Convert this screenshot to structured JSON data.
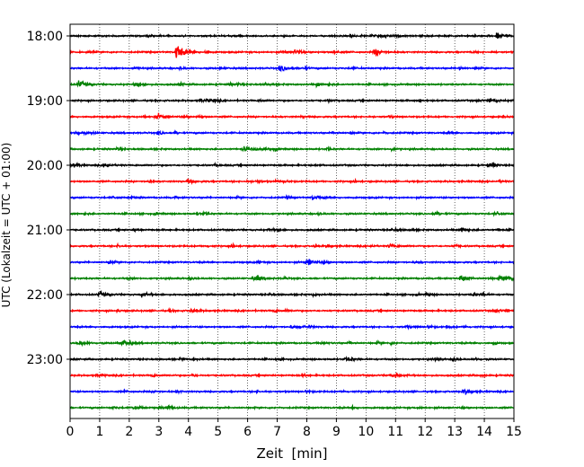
{
  "chart_data": {
    "type": "line",
    "title": "",
    "xlabel": "Zeit  [min]",
    "ylabel": "UTC (Lokalzeit = UTC + 01:00)",
    "xlim": [
      0,
      15
    ],
    "x_ticks": [
      "0",
      "1",
      "2",
      "3",
      "4",
      "5",
      "6",
      "7",
      "8",
      "9",
      "10",
      "11",
      "12",
      "13",
      "14",
      "15"
    ],
    "y_ticks": [
      "18:00",
      "19:00",
      "20:00",
      "21:00",
      "22:00",
      "23:00"
    ],
    "grid": "vertical dotted at each minute",
    "trace_interval_minutes": 15,
    "start_time": "18:00",
    "trace_count": 24,
    "trace_colors": [
      "#000000",
      "#ff0000",
      "#0000ff",
      "#008000"
    ],
    "events": [
      {
        "trace": 0,
        "t": 14.45,
        "amp": 0.7
      },
      {
        "trace": 1,
        "t": 3.6,
        "amp": 1.6
      },
      {
        "trace": 1,
        "t": 10.3,
        "amp": 0.7
      },
      {
        "trace": 1,
        "t": 7.6,
        "amp": 0.45
      },
      {
        "trace": 2,
        "t": 7.1,
        "amp": 0.55
      },
      {
        "trace": 3,
        "t": 0.3,
        "amp": 0.65
      },
      {
        "trace": 3,
        "t": 2.2,
        "amp": 0.4
      },
      {
        "trace": 4,
        "t": 14.2,
        "amp": 0.35
      },
      {
        "trace": 5,
        "t": 3.0,
        "amp": 0.3
      },
      {
        "trace": 6,
        "t": 0.2,
        "amp": 0.3
      },
      {
        "trace": 7,
        "t": 5.9,
        "amp": 0.35
      },
      {
        "trace": 8,
        "t": 1.2,
        "amp": 0.3
      },
      {
        "trace": 9,
        "t": 4.0,
        "amp": 0.3
      },
      {
        "trace": 10,
        "t": 8.2,
        "amp": 0.3
      },
      {
        "trace": 11,
        "t": 12.3,
        "amp": 0.3
      },
      {
        "trace": 12,
        "t": 13.2,
        "amp": 0.45
      },
      {
        "trace": 13,
        "t": 10.8,
        "amp": 0.3
      },
      {
        "trace": 14,
        "t": 8.1,
        "amp": 0.35
      },
      {
        "trace": 15,
        "t": 6.3,
        "amp": 0.5
      },
      {
        "trace": 15,
        "t": 13.2,
        "amp": 0.6
      },
      {
        "trace": 15,
        "t": 14.8,
        "amp": 0.5
      },
      {
        "trace": 16,
        "t": 1.0,
        "amp": 0.45
      },
      {
        "trace": 16,
        "t": 2.4,
        "amp": 0.4
      },
      {
        "trace": 17,
        "t": 4.1,
        "amp": 0.3
      },
      {
        "trace": 18,
        "t": 7.5,
        "amp": 0.3
      },
      {
        "trace": 19,
        "t": 0.3,
        "amp": 0.4
      },
      {
        "trace": 19,
        "t": 1.8,
        "amp": 0.4
      },
      {
        "trace": 20,
        "t": 9.4,
        "amp": 0.25
      },
      {
        "trace": 21,
        "t": 11.0,
        "amp": 0.35
      },
      {
        "trace": 22,
        "t": 13.3,
        "amp": 0.3
      },
      {
        "trace": 23,
        "t": 3.3,
        "amp": 0.3
      }
    ]
  }
}
